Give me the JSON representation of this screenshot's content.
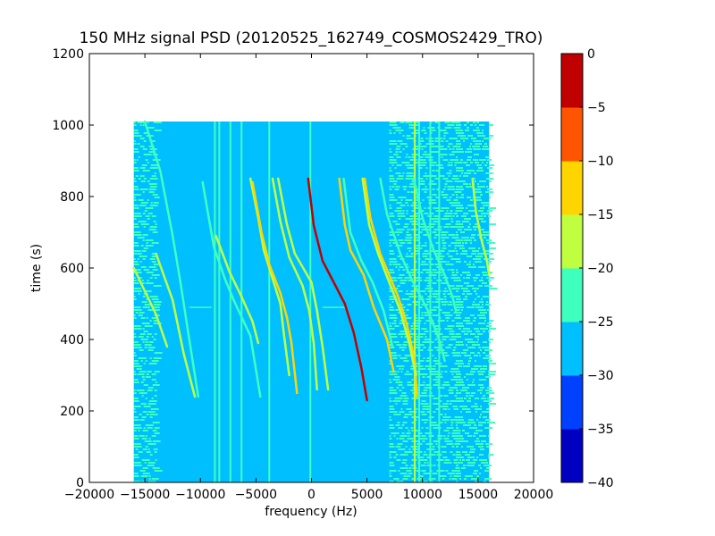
{
  "chart_data": {
    "type": "heatmap",
    "title": "150 MHz signal PSD (20120525_162749_COSMOS2429_TRO)",
    "xlabel": "frequency (Hz)",
    "ylabel": "time (s)",
    "xlim": [
      -20000,
      20000
    ],
    "ylim": [
      0,
      1200
    ],
    "xticks": [
      -20000,
      -15000,
      -10000,
      -5000,
      0,
      5000,
      10000,
      15000,
      20000
    ],
    "xtick_labels": [
      "−20000",
      "−15000",
      "−10000",
      "−5000",
      "0",
      "5000",
      "10000",
      "15000",
      "20000"
    ],
    "yticks": [
      0,
      200,
      400,
      600,
      800,
      1000,
      1200
    ],
    "ytick_labels": [
      "0",
      "200",
      "400",
      "600",
      "800",
      "1000",
      "1200"
    ],
    "data_extent": {
      "freq": [
        -16000,
        16000
      ],
      "time": [
        0,
        1010
      ]
    },
    "background_level": -27.5,
    "colorbar": {
      "levels": [
        -40,
        -35,
        -30,
        -25,
        -20,
        -15,
        -10,
        -5,
        0
      ],
      "tick_labels": [
        "−40",
        "−35",
        "−30",
        "−25",
        "−20",
        "−15",
        "−10",
        "−5",
        "0"
      ],
      "colors": [
        "#0000c0",
        "#0040ff",
        "#00bfff",
        "#3fffbf",
        "#bfff3f",
        "#ffd500",
        "#ff5500",
        "#c00000"
      ]
    },
    "noise_regions": [
      {
        "freq": [
          -16000,
          -14000
        ],
        "time": [
          0,
          1010
        ],
        "level": -22.5
      },
      {
        "freq": [
          7000,
          13000
        ],
        "time": [
          0,
          1010
        ],
        "level": -22.5
      },
      {
        "freq": [
          13000,
          16000
        ],
        "time": [
          0,
          1010
        ],
        "level": -22.5
      }
    ],
    "vertical_lines": [
      {
        "freq": -8700,
        "time": [
          0,
          1010
        ],
        "level": -22.5
      },
      {
        "freq": -8300,
        "time": [
          0,
          1010
        ],
        "level": -22.5
      },
      {
        "freq": -7300,
        "time": [
          0,
          1010
        ],
        "level": -22.5
      },
      {
        "freq": -6300,
        "time": [
          0,
          1010
        ],
        "level": -22.5
      },
      {
        "freq": -3800,
        "time": [
          0,
          1010
        ],
        "level": -22.5
      },
      {
        "freq": -100,
        "time": [
          0,
          1010
        ],
        "level": -22.5
      },
      {
        "freq": 9300,
        "time": [
          0,
          1010
        ],
        "level": -17.5
      },
      {
        "freq": 9700,
        "time": [
          0,
          1010
        ],
        "level": -22.5
      },
      {
        "freq": 10700,
        "time": [
          0,
          1010
        ],
        "level": -22.5
      },
      {
        "freq": 11500,
        "time": [
          0,
          1010
        ],
        "level": -22.5
      }
    ],
    "horizontal_lines": [
      {
        "time": 490,
        "freq": [
          -11000,
          -9000
        ],
        "level": -22.5
      },
      {
        "time": 490,
        "freq": [
          1000,
          3000
        ],
        "level": -22.5
      }
    ],
    "series": [
      {
        "level": -22.5,
        "points": [
          [
            -15000,
            1010
          ],
          [
            -13600,
            870
          ],
          [
            -12500,
            690
          ],
          [
            -11800,
            560
          ],
          [
            -11200,
            440
          ],
          [
            -10200,
            240
          ]
        ]
      },
      {
        "level": -17.5,
        "points": [
          [
            -16000,
            600
          ],
          [
            -14000,
            470
          ],
          [
            -13000,
            380
          ]
        ]
      },
      {
        "level": -17.5,
        "points": [
          [
            -14000,
            640
          ],
          [
            -12500,
            510
          ],
          [
            -11500,
            360
          ],
          [
            -10500,
            240
          ]
        ]
      },
      {
        "level": -22.5,
        "points": [
          [
            -9800,
            840
          ],
          [
            -8800,
            660
          ],
          [
            -7800,
            570
          ],
          [
            -7000,
            510
          ],
          [
            -5500,
            410
          ],
          [
            -4600,
            240
          ]
        ]
      },
      {
        "level": -17.5,
        "points": [
          [
            -8600,
            690
          ],
          [
            -7400,
            590
          ],
          [
            -6300,
            520
          ],
          [
            -5300,
            450
          ],
          [
            -4800,
            390
          ]
        ]
      },
      {
        "level": -17.5,
        "points": [
          [
            -5500,
            850
          ],
          [
            -4800,
            740
          ],
          [
            -4300,
            650
          ],
          [
            -3500,
            570
          ],
          [
            -2800,
            500
          ],
          [
            -2500,
            420
          ],
          [
            -2000,
            300
          ]
        ]
      },
      {
        "level": -12.5,
        "points": [
          [
            -5300,
            840
          ],
          [
            -4500,
            700
          ],
          [
            -3800,
            610
          ],
          [
            -2800,
            530
          ],
          [
            -2200,
            460
          ],
          [
            -1800,
            390
          ],
          [
            -1300,
            250
          ]
        ]
      },
      {
        "level": -17.5,
        "points": [
          [
            -3500,
            850
          ],
          [
            -2800,
            730
          ],
          [
            -2000,
            630
          ],
          [
            -800,
            550
          ],
          [
            -200,
            480
          ],
          [
            200,
            390
          ],
          [
            500,
            260
          ]
        ]
      },
      {
        "level": -17.5,
        "points": [
          [
            -3000,
            850
          ],
          [
            -2200,
            720
          ],
          [
            -1500,
            640
          ],
          [
            0,
            560
          ],
          [
            500,
            480
          ],
          [
            1000,
            380
          ],
          [
            1500,
            260
          ]
        ]
      },
      {
        "level": -2.5,
        "points": [
          [
            -300,
            850
          ],
          [
            200,
            720
          ],
          [
            1000,
            620
          ],
          [
            2000,
            560
          ],
          [
            3000,
            500
          ],
          [
            3800,
            420
          ],
          [
            4500,
            320
          ],
          [
            5000,
            230
          ]
        ]
      },
      {
        "level": -12.5,
        "points": [
          [
            2500,
            850
          ],
          [
            3000,
            720
          ],
          [
            3500,
            650
          ],
          [
            4700,
            580
          ],
          [
            5600,
            490
          ],
          [
            6800,
            400
          ],
          [
            7400,
            310
          ]
        ]
      },
      {
        "level": -22.5,
        "points": [
          [
            2900,
            850
          ],
          [
            3500,
            700
          ],
          [
            4500,
            620
          ],
          [
            5500,
            560
          ],
          [
            6500,
            480
          ],
          [
            7300,
            380
          ]
        ]
      },
      {
        "level": -12.5,
        "points": [
          [
            4800,
            850
          ],
          [
            5300,
            740
          ],
          [
            6200,
            640
          ],
          [
            7000,
            580
          ],
          [
            7800,
            520
          ],
          [
            8600,
            440
          ],
          [
            9300,
            340
          ],
          [
            9500,
            240
          ]
        ]
      },
      {
        "level": -17.5,
        "points": [
          [
            4600,
            850
          ],
          [
            5200,
            720
          ],
          [
            6000,
            640
          ],
          [
            7000,
            560
          ],
          [
            8000,
            480
          ],
          [
            8800,
            390
          ],
          [
            9400,
            300
          ]
        ]
      },
      {
        "level": -22.5,
        "points": [
          [
            6200,
            850
          ],
          [
            6800,
            750
          ],
          [
            8000,
            640
          ],
          [
            9000,
            570
          ],
          [
            10500,
            480
          ],
          [
            11500,
            400
          ],
          [
            12000,
            340
          ]
        ]
      },
      {
        "level": -22.5,
        "points": [
          [
            9200,
            850
          ],
          [
            10000,
            740
          ],
          [
            11000,
            650
          ],
          [
            12000,
            580
          ],
          [
            12700,
            520
          ],
          [
            13000,
            480
          ]
        ]
      },
      {
        "level": -17.5,
        "points": [
          [
            14500,
            850
          ],
          [
            14800,
            760
          ],
          [
            15300,
            680
          ],
          [
            15800,
            620
          ],
          [
            16000,
            580
          ]
        ]
      }
    ]
  }
}
